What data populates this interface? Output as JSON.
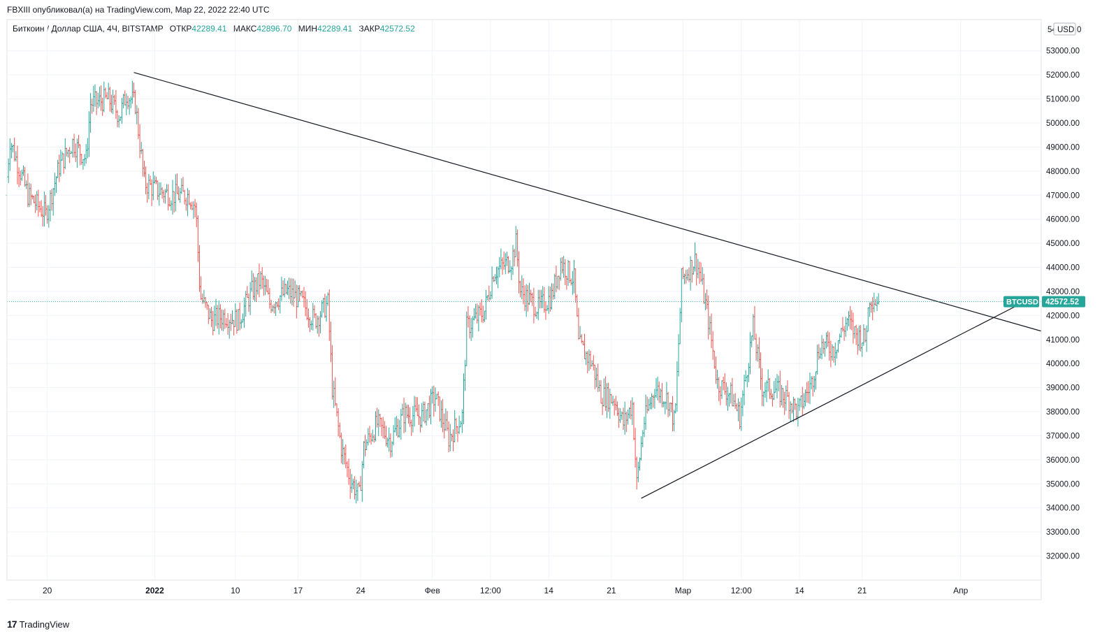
{
  "header": {
    "published_by": "FBXIII опубликовал(а) на TradingView.com, Мар 22, 2022 22:40 UTC"
  },
  "legend": {
    "symbol_title": "Биткоин / Доллар США, 4Ч, BITSTAMP",
    "open_label": "ОТКР",
    "open_value": "42289.41",
    "high_label": "МАКС",
    "high_value": "42896.70",
    "low_label": "МИН",
    "low_value": "42289.41",
    "close_label": "ЗАКР",
    "close_value": "42572.52"
  },
  "currency": "USD",
  "price_axis_top_partial": "54",
  "price_axis_top_partial_tail": "0",
  "last_price": {
    "symbol": "BTCUSD",
    "value": "42572.52",
    "color": "#26a69a"
  },
  "footer": {
    "brand": "TradingView",
    "logo": "17"
  },
  "colors": {
    "up": "#26a69a",
    "down": "#ef5350",
    "grid": "#f0f3fa",
    "trendline": "#131722"
  },
  "chart_data": {
    "type": "candlestick",
    "symbol": "BTCUSD",
    "interval": "4H",
    "y_ticks": [
      32000,
      33000,
      34000,
      35000,
      36000,
      37000,
      38000,
      39000,
      40000,
      41000,
      42000,
      43000,
      44000,
      45000,
      46000,
      47000,
      48000,
      49000,
      50000,
      51000,
      52000,
      53000
    ],
    "y_tick_labels": [
      "32000.00",
      "33000.00",
      "34000.00",
      "35000.00",
      "36000.00",
      "37000.00",
      "38000.00",
      "39000.00",
      "40000.00",
      "41000.00",
      "42000.00",
      "43000.00",
      "44000.00",
      "45000.00",
      "46000.00",
      "47000.00",
      "48000.00",
      "49000.00",
      "50000.00",
      "51000.00",
      "52000.00",
      "53000.00"
    ],
    "ylim": [
      31000,
      54300
    ],
    "x_ticks": [
      {
        "label": "20",
        "date": "2021-12-20",
        "bold": false
      },
      {
        "label": "2022",
        "date": "2022-01-01",
        "bold": true
      },
      {
        "label": "10",
        "date": "2022-01-10",
        "bold": false
      },
      {
        "label": "17",
        "date": "2022-01-17",
        "bold": false
      },
      {
        "label": "24",
        "date": "2022-01-24",
        "bold": false
      },
      {
        "label": "Фев",
        "date": "2022-02-01",
        "bold": false
      },
      {
        "label": "12:00",
        "date": "2022-02-07T12:00",
        "bold": false
      },
      {
        "label": "14",
        "date": "2022-02-14",
        "bold": false
      },
      {
        "label": "21",
        "date": "2022-02-21",
        "bold": false
      },
      {
        "label": "Мар",
        "date": "2022-03-01",
        "bold": false
      },
      {
        "label": "12:00",
        "date": "2022-03-07T12:00",
        "bold": false
      },
      {
        "label": "14",
        "date": "2022-03-14",
        "bold": false
      },
      {
        "label": "21",
        "date": "2022-03-21",
        "bold": false
      },
      {
        "label": "Апр",
        "date": "2022-04-01",
        "bold": false
      }
    ],
    "xlim": [
      "2021-12-15T12:00",
      "2022-04-10"
    ],
    "price_anchors": [
      {
        "date": "2021-12-15T12:00",
        "price": 47000
      },
      {
        "date": "2021-12-16T00:00",
        "price": 49300
      },
      {
        "date": "2021-12-18T00:00",
        "price": 47000
      },
      {
        "date": "2021-12-20T00:00",
        "price": 46200
      },
      {
        "date": "2021-12-21T12:00",
        "price": 48200
      },
      {
        "date": "2021-12-23T00:00",
        "price": 49200
      },
      {
        "date": "2021-12-24T12:00",
        "price": 48500
      },
      {
        "date": "2021-12-25T00:00",
        "price": 50800
      },
      {
        "date": "2021-12-27T00:00",
        "price": 51000
      },
      {
        "date": "2021-12-28T06:00",
        "price": 50300
      },
      {
        "date": "2021-12-29T00:00",
        "price": 51200
      },
      {
        "date": "2021-12-30T00:00",
        "price": 50800
      },
      {
        "date": "2021-12-31T00:00",
        "price": 47500
      },
      {
        "date": "2022-01-01T12:00",
        "price": 47200
      },
      {
        "date": "2022-01-03T00:00",
        "price": 47000
      },
      {
        "date": "2022-01-05T00:00",
        "price": 47000
      },
      {
        "date": "2022-01-05T18:00",
        "price": 46500
      },
      {
        "date": "2022-01-06T06:00",
        "price": 42800
      },
      {
        "date": "2022-01-07T12:00",
        "price": 41800
      },
      {
        "date": "2022-01-09T00:00",
        "price": 42000
      },
      {
        "date": "2022-01-10T12:00",
        "price": 41800
      },
      {
        "date": "2022-01-12T00:00",
        "price": 43000
      },
      {
        "date": "2022-01-13T00:00",
        "price": 43500
      },
      {
        "date": "2022-01-14T00:00",
        "price": 42500
      },
      {
        "date": "2022-01-16T00:00",
        "price": 43000
      },
      {
        "date": "2022-01-17T12:00",
        "price": 42600
      },
      {
        "date": "2022-01-19T00:00",
        "price": 41800
      },
      {
        "date": "2022-01-20T12:00",
        "price": 42500
      },
      {
        "date": "2022-01-21T00:00",
        "price": 39000
      },
      {
        "date": "2022-01-22T00:00",
        "price": 36500
      },
      {
        "date": "2022-01-23T00:00",
        "price": 35200
      },
      {
        "date": "2022-01-24T00:00",
        "price": 34500
      },
      {
        "date": "2022-01-24T12:00",
        "price": 36500
      },
      {
        "date": "2022-01-26T00:00",
        "price": 37500
      },
      {
        "date": "2022-01-27T12:00",
        "price": 36800
      },
      {
        "date": "2022-01-29T00:00",
        "price": 37900
      },
      {
        "date": "2022-01-31T00:00",
        "price": 37800
      },
      {
        "date": "2022-02-01T12:00",
        "price": 38600
      },
      {
        "date": "2022-02-03T00:00",
        "price": 36900
      },
      {
        "date": "2022-02-04T12:00",
        "price": 37800
      },
      {
        "date": "2022-02-05T00:00",
        "price": 41500
      },
      {
        "date": "2022-02-07T00:00",
        "price": 42200
      },
      {
        "date": "2022-02-08T00:00",
        "price": 43800
      },
      {
        "date": "2022-02-10T00:00",
        "price": 44300
      },
      {
        "date": "2022-02-10T12:00",
        "price": 45000
      },
      {
        "date": "2022-02-11T00:00",
        "price": 43000
      },
      {
        "date": "2022-02-13T00:00",
        "price": 42300
      },
      {
        "date": "2022-02-14T12:00",
        "price": 42800
      },
      {
        "date": "2022-02-15T12:00",
        "price": 44200
      },
      {
        "date": "2022-02-17T00:00",
        "price": 43500
      },
      {
        "date": "2022-02-17T12:00",
        "price": 40800
      },
      {
        "date": "2022-02-19T00:00",
        "price": 40000
      },
      {
        "date": "2022-02-20T00:00",
        "price": 38700
      },
      {
        "date": "2022-02-21T12:00",
        "price": 38500
      },
      {
        "date": "2022-02-22T12:00",
        "price": 37500
      },
      {
        "date": "2022-02-23T12:00",
        "price": 38300
      },
      {
        "date": "2022-02-24T00:00",
        "price": 35000
      },
      {
        "date": "2022-02-24T18:00",
        "price": 37500
      },
      {
        "date": "2022-02-26T00:00",
        "price": 39000
      },
      {
        "date": "2022-02-27T12:00",
        "price": 38500
      },
      {
        "date": "2022-02-28T06:00",
        "price": 37500
      },
      {
        "date": "2022-03-01T00:00",
        "price": 43500
      },
      {
        "date": "2022-03-02T12:00",
        "price": 44300
      },
      {
        "date": "2022-03-03T00:00",
        "price": 43800
      },
      {
        "date": "2022-03-04T00:00",
        "price": 41800
      },
      {
        "date": "2022-03-05T00:00",
        "price": 39200
      },
      {
        "date": "2022-03-06T12:00",
        "price": 38700
      },
      {
        "date": "2022-03-07T12:00",
        "price": 37800
      },
      {
        "date": "2022-03-09T00:00",
        "price": 41500
      },
      {
        "date": "2022-03-10T00:00",
        "price": 39000
      },
      {
        "date": "2022-03-11T12:00",
        "price": 38900
      },
      {
        "date": "2022-03-13T00:00",
        "price": 38500
      },
      {
        "date": "2022-03-14T00:00",
        "price": 38000
      },
      {
        "date": "2022-03-15T12:00",
        "price": 39200
      },
      {
        "date": "2022-03-16T12:00",
        "price": 40800
      },
      {
        "date": "2022-03-18T00:00",
        "price": 40600
      },
      {
        "date": "2022-03-19T12:00",
        "price": 41800
      },
      {
        "date": "2022-03-20T12:00",
        "price": 41200
      },
      {
        "date": "2022-03-21T12:00",
        "price": 41000
      },
      {
        "date": "2022-03-22T00:00",
        "price": 42800
      },
      {
        "date": "2022-03-22T20:00",
        "price": 42572.52
      }
    ],
    "trendlines": [
      {
        "name": "",
        "from": {
          "date": "2021-12-29T16:00",
          "price": 52100
        },
        "to": {
          "date": "2022-04-10",
          "price": 41350
        }
      },
      {
        "name": "",
        "from": {
          "date": "2022-02-24T08:00",
          "price": 34400
        },
        "to": {
          "date": "2022-04-07T12:00",
          "price": 42450
        }
      }
    ]
  }
}
